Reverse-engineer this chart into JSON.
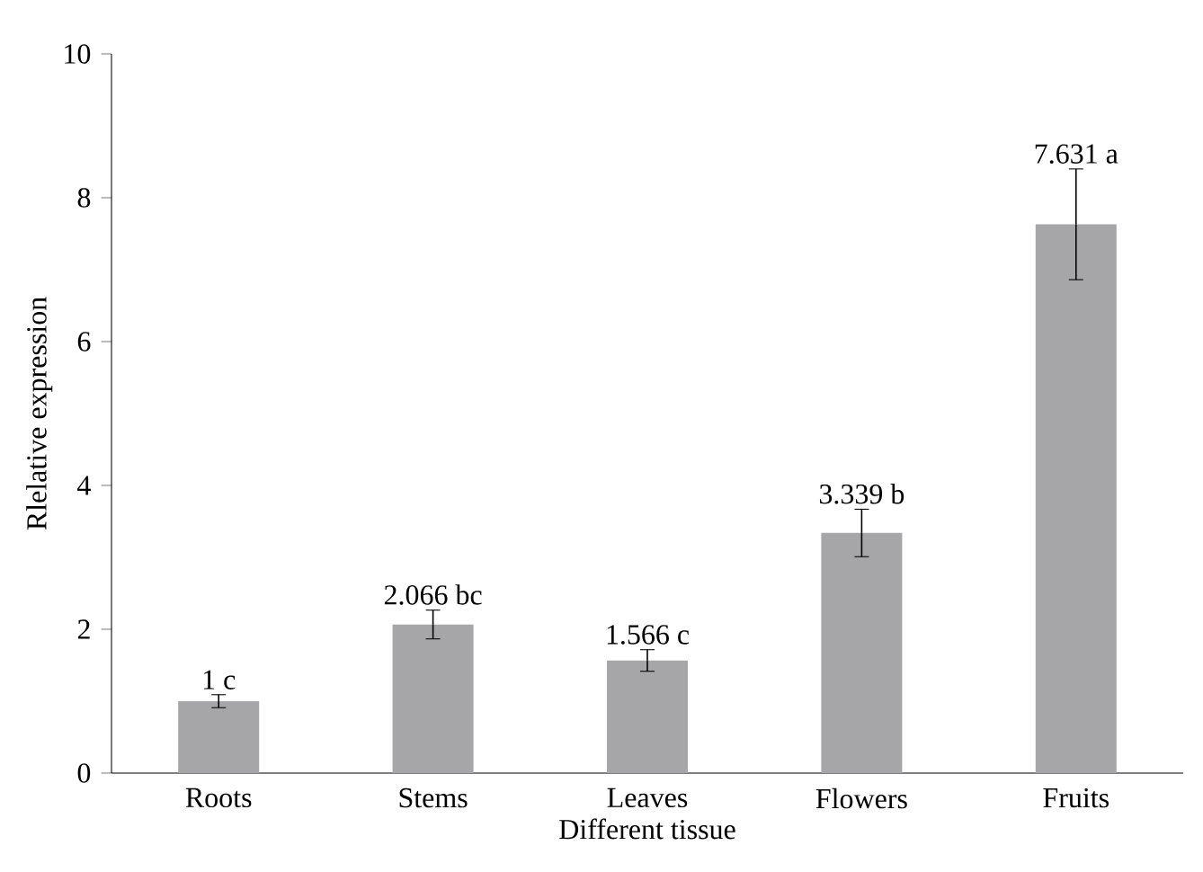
{
  "chart_data": {
    "type": "bar",
    "xlabel": "Different tissue",
    "ylabel": "Rlelative expression",
    "categories": [
      "Roots",
      "Stems",
      "Leaves",
      "Flowers",
      "Fruits"
    ],
    "values": [
      1,
      2.066,
      1.566,
      3.339,
      7.631
    ],
    "errors": [
      0.09,
      0.2,
      0.15,
      0.33,
      0.77
    ],
    "value_labels": [
      "1 c",
      "2.066 bc",
      "1.566 c",
      "3.339 b",
      "7.631 a"
    ],
    "color": "#a6a6a8",
    "ylim": [
      0,
      10
    ],
    "yticks": [
      0,
      2,
      4,
      6,
      8,
      10
    ],
    "grid": false
  }
}
